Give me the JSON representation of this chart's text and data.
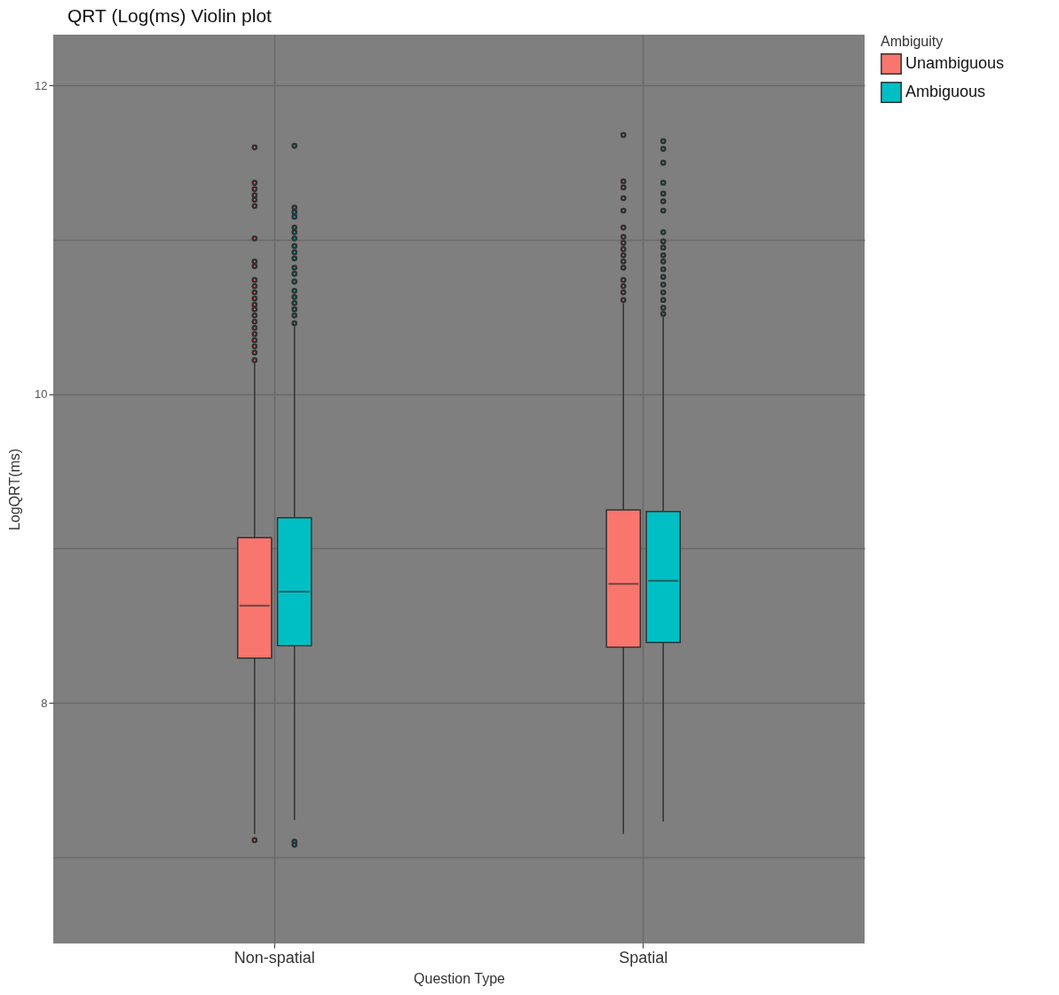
{
  "chart_data": {
    "type": "box",
    "title": "QRT (Log(ms) Violin plot",
    "xlabel": "Question Type",
    "ylabel": "LogQRT(ms)",
    "legend_title": "Ambiguity",
    "categories": [
      "Non-spatial",
      "Spatial"
    ],
    "series": [
      {
        "name": "Unambiguous",
        "color": "#f8766d",
        "boxes": [
          {
            "low": 7.15,
            "q1": 8.29,
            "median": 8.63,
            "q3": 9.07,
            "high": 10.2,
            "outliers": [
              11.6,
              11.37,
              11.33,
              11.29,
              11.26,
              11.22,
              11.01,
              10.86,
              10.83,
              10.74,
              10.7,
              10.66,
              10.62,
              10.58,
              10.55,
              10.51,
              10.47,
              10.43,
              10.39,
              10.35,
              10.31,
              10.27,
              10.22,
              7.11
            ]
          },
          {
            "low": 7.15,
            "q1": 8.36,
            "median": 8.77,
            "q3": 9.25,
            "high": 10.59,
            "outliers": [
              11.68,
              11.38,
              11.34,
              11.27,
              11.19,
              11.08,
              11.02,
              10.98,
              10.94,
              10.9,
              10.86,
              10.82,
              10.74,
              10.7,
              10.66,
              10.61
            ]
          }
        ]
      },
      {
        "name": "Ambiguous",
        "color": "#00bfc4",
        "boxes": [
          {
            "low": 7.24,
            "q1": 8.37,
            "median": 8.72,
            "q3": 9.2,
            "high": 10.44,
            "outliers": [
              11.61,
              11.21,
              11.18,
              11.15,
              11.08,
              11.05,
              11.01,
              10.96,
              10.92,
              10.88,
              10.82,
              10.78,
              10.73,
              10.67,
              10.63,
              10.59,
              10.55,
              10.51,
              10.46,
              7.1,
              7.08
            ]
          },
          {
            "low": 7.23,
            "q1": 8.39,
            "median": 8.79,
            "q3": 9.24,
            "high": 10.5,
            "outliers": [
              11.64,
              11.59,
              11.5,
              11.37,
              11.3,
              11.25,
              11.19,
              11.05,
              10.99,
              10.95,
              10.9,
              10.86,
              10.81,
              10.76,
              10.71,
              10.66,
              10.61,
              10.56,
              10.52
            ]
          }
        ]
      }
    ],
    "ylim": [
      6.44,
      12.33
    ],
    "yticks": [
      {
        "value": 7,
        "label": null
      },
      8,
      {
        "value": 9,
        "label": null
      },
      10,
      {
        "value": 11,
        "label": null
      },
      12
    ],
    "grid": true,
    "legend": "right"
  }
}
